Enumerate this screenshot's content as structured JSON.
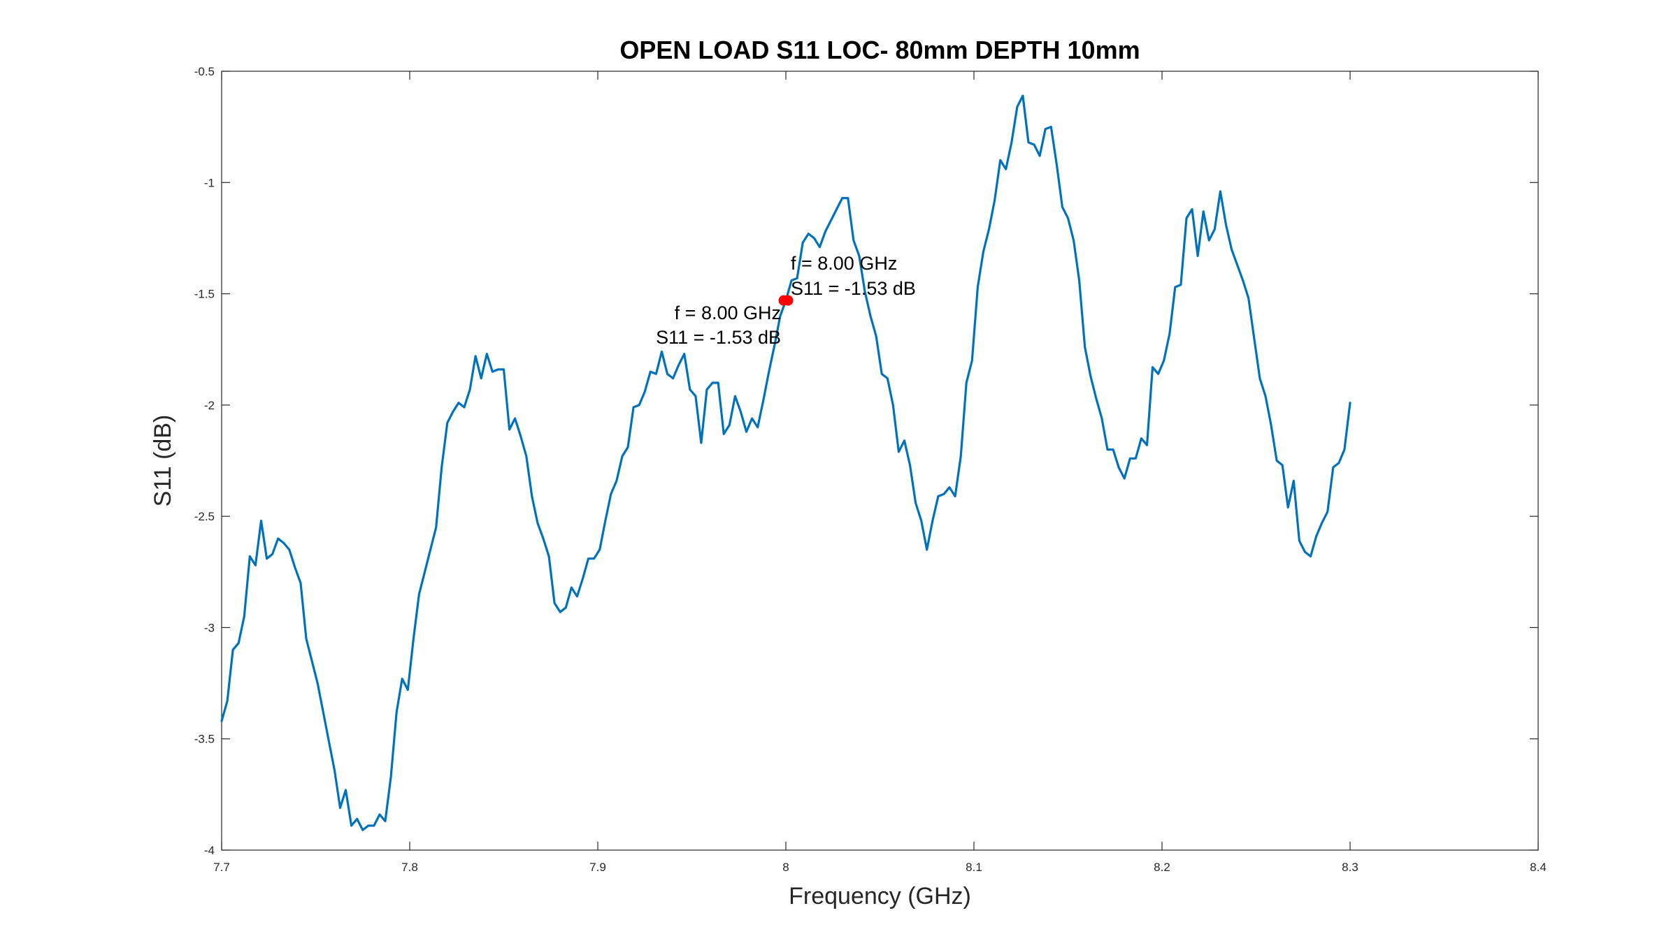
{
  "chart_data": {
    "type": "line",
    "title": "OPEN LOAD S11 LOC- 80mm DEPTH 10mm",
    "xlabel": "Frequency (GHz)",
    "ylabel": "S11 (dB)",
    "xlim": [
      7.7,
      8.4
    ],
    "ylim": [
      -4,
      -0.5
    ],
    "xticks": [
      7.7,
      7.8,
      7.9,
      8,
      8.1,
      8.2,
      8.3,
      8.4
    ],
    "xtick_labels": [
      "7.7",
      "7.8",
      "7.9",
      "8",
      "8.1",
      "8.2",
      "8.3",
      "8.4"
    ],
    "yticks": [
      -4,
      -3.5,
      -3,
      -2.5,
      -2,
      -1.5,
      -1,
      -0.5
    ],
    "ytick_labels": [
      "-4",
      "-3.5",
      "-3",
      "-2.5",
      "-2",
      "-1.5",
      "-1",
      "-0.5"
    ],
    "grid": false,
    "line_color": "#0072BD",
    "marker_color": "#FF0000",
    "series": [
      {
        "x": [
          7.7,
          7.703,
          7.706,
          7.709,
          7.712,
          7.715,
          7.718,
          7.721,
          7.724,
          7.727,
          7.73,
          7.733,
          7.736,
          7.739,
          7.742,
          7.745,
          7.748,
          7.751,
          7.754,
          7.757,
          7.76,
          7.763,
          7.766,
          7.769,
          7.772,
          7.775,
          7.778,
          7.781,
          7.784,
          7.787,
          7.79,
          7.793,
          7.796,
          7.799,
          7.802,
          7.805,
          7.808,
          7.811,
          7.814,
          7.817,
          7.82,
          7.823,
          7.826,
          7.829,
          7.832,
          7.835,
          7.838,
          7.841,
          7.844,
          7.847,
          7.85,
          7.853,
          7.856,
          7.859,
          7.862,
          7.865,
          7.868,
          7.871,
          7.874,
          7.877,
          7.88,
          7.883,
          7.886,
          7.889,
          7.892,
          7.895,
          7.898,
          7.901,
          7.904,
          7.907,
          7.91,
          7.913,
          7.916,
          7.919,
          7.922,
          7.925,
          7.928,
          7.931,
          7.934,
          7.937,
          7.94,
          7.943,
          7.946,
          7.949,
          7.952,
          7.955,
          7.958,
          7.961,
          7.964,
          7.967,
          7.97,
          7.973,
          7.976,
          7.979,
          7.982,
          7.985,
          7.988,
          7.991,
          7.994,
          7.997,
          8.0,
          8.003,
          8.006,
          8.009,
          8.012,
          8.015,
          8.018,
          8.021,
          8.024,
          8.027,
          8.03,
          8.033,
          8.036,
          8.039,
          8.042,
          8.045,
          8.048,
          8.051,
          8.054,
          8.057,
          8.06,
          8.063,
          8.066,
          8.069,
          8.072,
          8.075,
          8.078,
          8.081,
          8.084,
          8.087,
          8.09,
          8.093,
          8.096,
          8.099,
          8.102,
          8.105,
          8.108,
          8.111,
          8.114,
          8.117,
          8.12,
          8.123,
          8.126,
          8.129,
          8.132,
          8.135,
          8.138,
          8.141,
          8.144,
          8.147,
          8.15,
          8.153,
          8.156,
          8.159,
          8.162,
          8.165,
          8.168,
          8.171,
          8.174,
          8.177,
          8.18,
          8.183,
          8.186,
          8.189,
          8.192,
          8.195,
          8.198,
          8.201,
          8.204,
          8.207,
          8.21,
          8.213,
          8.216,
          8.219,
          8.222,
          8.225,
          8.228,
          8.231,
          8.234,
          8.237,
          8.24,
          8.243,
          8.246,
          8.249,
          8.252,
          8.255,
          8.258,
          8.261,
          8.264,
          8.267,
          8.27,
          8.273,
          8.276,
          8.279,
          8.282,
          8.285,
          8.288,
          8.291,
          8.294,
          8.297,
          8.3
        ],
        "y": [
          -3.42,
          -3.33,
          -3.1,
          -3.07,
          -2.95,
          -2.68,
          -2.72,
          -2.52,
          -2.69,
          -2.67,
          -2.6,
          -2.62,
          -2.65,
          -2.73,
          -2.8,
          -3.05,
          -3.15,
          -3.25,
          -3.38,
          -3.51,
          -3.64,
          -3.81,
          -3.73,
          -3.89,
          -3.86,
          -3.91,
          -3.89,
          -3.89,
          -3.84,
          -3.87,
          -3.67,
          -3.38,
          -3.23,
          -3.28,
          -3.05,
          -2.85,
          -2.75,
          -2.65,
          -2.55,
          -2.28,
          -2.08,
          -2.03,
          -1.99,
          -2.01,
          -1.93,
          -1.78,
          -1.88,
          -1.77,
          -1.85,
          -1.84,
          -1.84,
          -2.11,
          -2.06,
          -2.14,
          -2.23,
          -2.41,
          -2.53,
          -2.6,
          -2.68,
          -2.89,
          -2.93,
          -2.91,
          -2.82,
          -2.86,
          -2.78,
          -2.69,
          -2.69,
          -2.65,
          -2.52,
          -2.4,
          -2.34,
          -2.23,
          -2.19,
          -2.01,
          -2.0,
          -1.94,
          -1.85,
          -1.86,
          -1.76,
          -1.86,
          -1.88,
          -1.82,
          -1.77,
          -1.93,
          -1.96,
          -2.17,
          -1.93,
          -1.9,
          -1.9,
          -2.13,
          -2.09,
          -1.96,
          -2.03,
          -2.12,
          -2.06,
          -2.1,
          -1.98,
          -1.85,
          -1.73,
          -1.6,
          -1.53,
          -1.44,
          -1.43,
          -1.27,
          -1.23,
          -1.25,
          -1.29,
          -1.22,
          -1.17,
          -1.12,
          -1.07,
          -1.07,
          -1.26,
          -1.33,
          -1.49,
          -1.6,
          -1.69,
          -1.86,
          -1.88,
          -2.0,
          -2.21,
          -2.16,
          -2.27,
          -2.44,
          -2.52,
          -2.65,
          -2.52,
          -2.41,
          -2.4,
          -2.37,
          -2.41,
          -2.23,
          -1.9,
          -1.8,
          -1.47,
          -1.31,
          -1.21,
          -1.08,
          -0.9,
          -0.94,
          -0.82,
          -0.66,
          -0.61,
          -0.82,
          -0.83,
          -0.88,
          -0.76,
          -0.75,
          -0.92,
          -1.11,
          -1.16,
          -1.26,
          -1.44,
          -1.74,
          -1.87,
          -1.97,
          -2.06,
          -2.2,
          -2.2,
          -2.28,
          -2.33,
          -2.24,
          -2.24,
          -2.15,
          -2.18,
          -1.83,
          -1.86,
          -1.8,
          -1.68,
          -1.47,
          -1.46,
          -1.16,
          -1.12,
          -1.33,
          -1.13,
          -1.26,
          -1.21,
          -1.04,
          -1.19,
          -1.3,
          -1.37,
          -1.44,
          -1.52,
          -1.7,
          -1.88,
          -1.96,
          -2.09,
          -2.25,
          -2.27,
          -2.46,
          -2.34,
          -2.61,
          -2.66,
          -2.68,
          -2.59,
          -2.53,
          -2.48,
          -2.28,
          -2.26,
          -2.2,
          -1.99
        ],
        "line_color": "#0072BD"
      }
    ],
    "annotations": [
      {
        "x": 8.0,
        "y": -1.53,
        "placement": "left",
        "line1": "f = 8.00 GHz",
        "line2": "S11 = -1.53 dB"
      },
      {
        "x": 8.0,
        "y": -1.53,
        "placement": "right",
        "line1": "f = 8.00 GHz",
        "line2": "S11 = -1.53 dB"
      }
    ]
  }
}
